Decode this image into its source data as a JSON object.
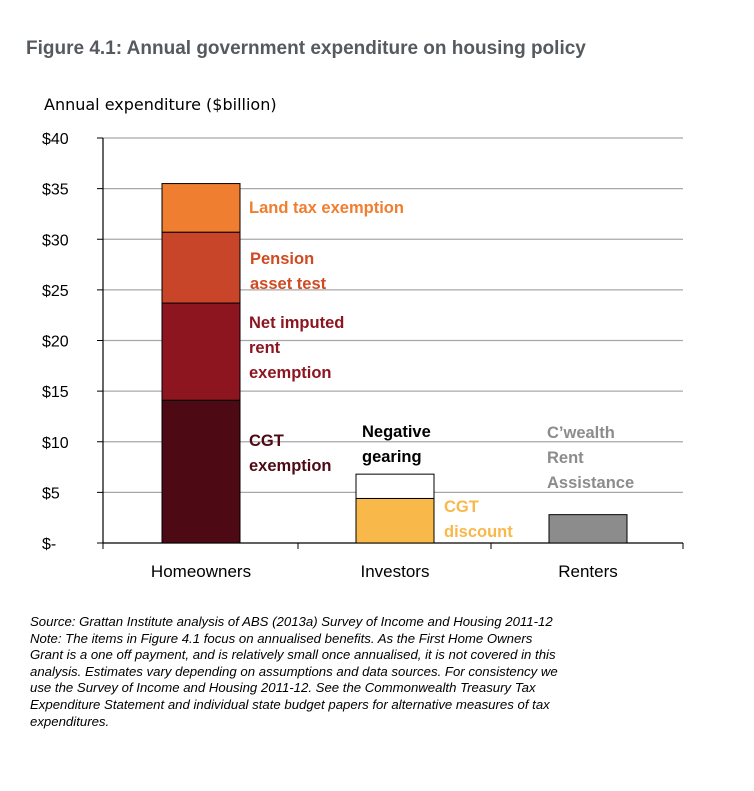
{
  "title": "Figure 4.1: Annual government expenditure on housing policy",
  "chart_data": {
    "type": "bar",
    "stacked": true,
    "ylabel": "Annual expenditure ($billion)",
    "ylim": [
      0,
      40
    ],
    "yticks": [
      0,
      5,
      10,
      15,
      20,
      25,
      30,
      35,
      40
    ],
    "ytick_labels": [
      "$-",
      "$5",
      "$10",
      "$15",
      "$20",
      "$25",
      "$30",
      "$35",
      "$40"
    ],
    "grid": true,
    "categories": [
      "Homeowners",
      "Investors",
      "Renters"
    ],
    "segments": [
      {
        "category": "Homeowners",
        "label": [
          "CGT",
          "exemption"
        ],
        "value": 14.1,
        "color": "#4d0a14",
        "label_color": "#4d0a14"
      },
      {
        "category": "Homeowners",
        "label": [
          "Net imputed",
          "rent",
          "exemption"
        ],
        "value": 9.6,
        "color": "#8c1520",
        "label_color": "#8c1520"
      },
      {
        "category": "Homeowners",
        "label": [
          "Pension",
          "asset test"
        ],
        "value": 7.0,
        "color": "#c9452a",
        "label_color": "#d04a22"
      },
      {
        "category": "Homeowners",
        "label": [
          "Land tax exemption"
        ],
        "value": 4.8,
        "color": "#f07e30",
        "label_color": "#f07e30"
      },
      {
        "category": "Investors",
        "label": [
          "CGT",
          "discount"
        ],
        "value": 4.4,
        "color": "#f9b84a",
        "label_color": "#f9b84a"
      },
      {
        "category": "Investors",
        "label": [
          "Negative",
          "gearing"
        ],
        "value": 2.4,
        "color": "#ffffff",
        "label_color": "#000000"
      },
      {
        "category": "Renters",
        "label": [
          "C’wealth",
          "Rent",
          "Assistance"
        ],
        "value": 2.8,
        "color": "#8c8c8c",
        "label_color": "#8c8c8c"
      }
    ]
  },
  "notes": {
    "source": "Source: Grattan Institute analysis of ABS (2013a) Survey of Income and Housing 2011-12",
    "note_lines": [
      "Note: The items in Figure 4.1 focus on annualised benefits. As the First Home Owners",
      "Grant is a one off payment, and is relatively small once annualised, it is not covered in this",
      "analysis. Estimates vary depending on assumptions and data sources. For consistency we",
      "use the Survey of Income and Housing 2011-12. See the Commonwealth Treasury Tax",
      "Expenditure Statement and individual state budget papers for alternative measures of tax",
      "expenditures."
    ]
  }
}
